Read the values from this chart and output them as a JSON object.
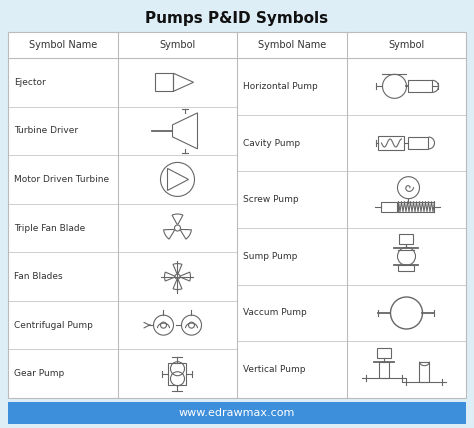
{
  "title": "Pumps P&ID Symbols",
  "background_color": "#ddeef6",
  "table_bg": "#ffffff",
  "border_color": "#bbbbbb",
  "title_color": "#111111",
  "text_color": "#333333",
  "symbol_color": "#666666",
  "footer_bg": "#3d8fdb",
  "footer_text": "www.edrawmax.com",
  "footer_text_color": "#ffffff",
  "left_rows": [
    "Ejector",
    "Turbine Driver",
    "Motor Driven Turbine",
    "Triple Fan Blade",
    "Fan Blades",
    "Centrifugal Pump",
    "Gear Pump"
  ],
  "right_rows": [
    "Horizontal Pump",
    "Cavity Pump",
    "Screw Pump",
    "Sump Pump",
    "Vaccum Pump",
    "Vertical Pump"
  ]
}
